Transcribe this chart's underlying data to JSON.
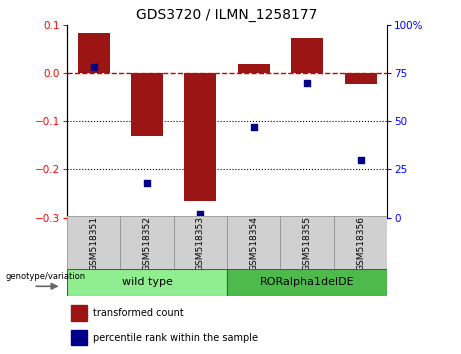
{
  "title": "GDS3720 / ILMN_1258177",
  "samples": [
    "GSM518351",
    "GSM518352",
    "GSM518353",
    "GSM518354",
    "GSM518355",
    "GSM518356"
  ],
  "bar_values": [
    0.082,
    -0.13,
    -0.265,
    0.018,
    0.072,
    -0.022
  ],
  "scatter_values_pct": [
    78,
    18,
    2,
    47,
    70,
    30
  ],
  "ylim_left": [
    -0.3,
    0.1
  ],
  "ylim_right": [
    0,
    100
  ],
  "yticks_left": [
    -0.3,
    -0.2,
    -0.1,
    0.0,
    0.1
  ],
  "yticks_right": [
    0,
    25,
    50,
    75,
    100
  ],
  "bar_color": "#9B1515",
  "scatter_color": "#00008B",
  "dashed_line_color": "#CC0000",
  "dotted_line_color": "#000000",
  "group1_label": "wild type",
  "group2_label": "RORalpha1delDE",
  "group1_color": "#90EE90",
  "group2_color": "#4CBB4C",
  "group_row_label": "genotype/variation",
  "legend_bar_label": "transformed count",
  "legend_scatter_label": "percentile rank within the sample",
  "x_positions": [
    1,
    2,
    3,
    4,
    5,
    6
  ],
  "bar_width": 0.6
}
